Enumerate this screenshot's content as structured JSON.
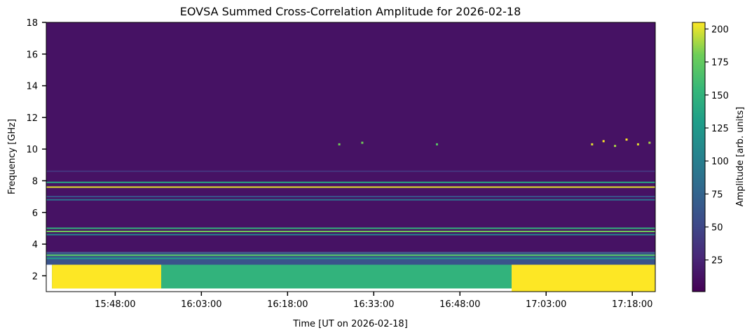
{
  "chart_data": {
    "type": "heatmap",
    "title": "EOVSA Summed Cross-Correlation Amplitude for 2026-02-18",
    "xlabel": "Time [UT on 2026-02-18]",
    "ylabel": "Frequency [GHz]",
    "colorbar_label": "Amplitude [arb. units]",
    "colormap": "viridis",
    "xlim": [
      "15:36:00",
      "17:22:00"
    ],
    "ylim": [
      1.0,
      18.0
    ],
    "clim": [
      1,
      205
    ],
    "x_ticks": [
      "15:48:00",
      "16:03:00",
      "16:18:00",
      "16:33:00",
      "16:48:00",
      "17:03:00",
      "17:18:00"
    ],
    "y_ticks": [
      2,
      4,
      6,
      8,
      10,
      12,
      14,
      16,
      18
    ],
    "colorbar_ticks": [
      25,
      50,
      75,
      100,
      125,
      150,
      175,
      200
    ],
    "regions": [
      {
        "name": "background",
        "freq_range": [
          3.5,
          18.0
        ],
        "time_range": [
          "15:36:00",
          "17:22:00"
        ],
        "amplitude": 12
      },
      {
        "name": "low-band",
        "freq_range": [
          1.2,
          2.7
        ],
        "time_range": [
          "15:37:00",
          "16:57:00"
        ],
        "amplitude": 150
      },
      {
        "name": "low-band saturated",
        "freq_range": [
          1.2,
          2.7
        ],
        "time_range": [
          "15:37:00",
          "15:56:00"
        ],
        "amplitude": 205
      },
      {
        "name": "low-band saturated late",
        "freq_range": [
          1.0,
          2.7
        ],
        "time_range": [
          "16:57:00",
          "17:22:00"
        ],
        "amplitude": 205
      },
      {
        "name": "mid-band",
        "freq_range": [
          2.7,
          3.5
        ],
        "time_range": [
          "15:36:00",
          "17:22:00"
        ],
        "amplitude": 60
      }
    ],
    "bands": [
      {
        "freq": 7.9,
        "amplitude": 140
      },
      {
        "freq": 7.6,
        "amplitude": 200
      },
      {
        "freq": 7.0,
        "amplitude": 60
      },
      {
        "freq": 6.8,
        "amplitude": 90
      },
      {
        "freq": 5.0,
        "amplitude": 150
      },
      {
        "freq": 4.8,
        "amplitude": 180
      },
      {
        "freq": 4.6,
        "amplitude": 110
      },
      {
        "freq": 3.3,
        "amplitude": 170
      },
      {
        "freq": 3.1,
        "amplitude": 130
      },
      {
        "freq": 8.6,
        "amplitude": 35
      }
    ],
    "spots": [
      {
        "time": "16:27:00",
        "freq": 10.3,
        "amplitude": 180
      },
      {
        "time": "16:31:00",
        "freq": 10.4,
        "amplitude": 180
      },
      {
        "time": "16:44:00",
        "freq": 10.3,
        "amplitude": 170
      },
      {
        "time": "17:11:00",
        "freq": 10.3,
        "amplitude": 200
      },
      {
        "time": "17:13:00",
        "freq": 10.5,
        "amplitude": 205
      },
      {
        "time": "17:15:00",
        "freq": 10.2,
        "amplitude": 190
      },
      {
        "time": "17:17:00",
        "freq": 10.6,
        "amplitude": 205
      },
      {
        "time": "17:19:00",
        "freq": 10.3,
        "amplitude": 200
      },
      {
        "time": "17:21:00",
        "freq": 10.4,
        "amplitude": 190
      }
    ]
  }
}
